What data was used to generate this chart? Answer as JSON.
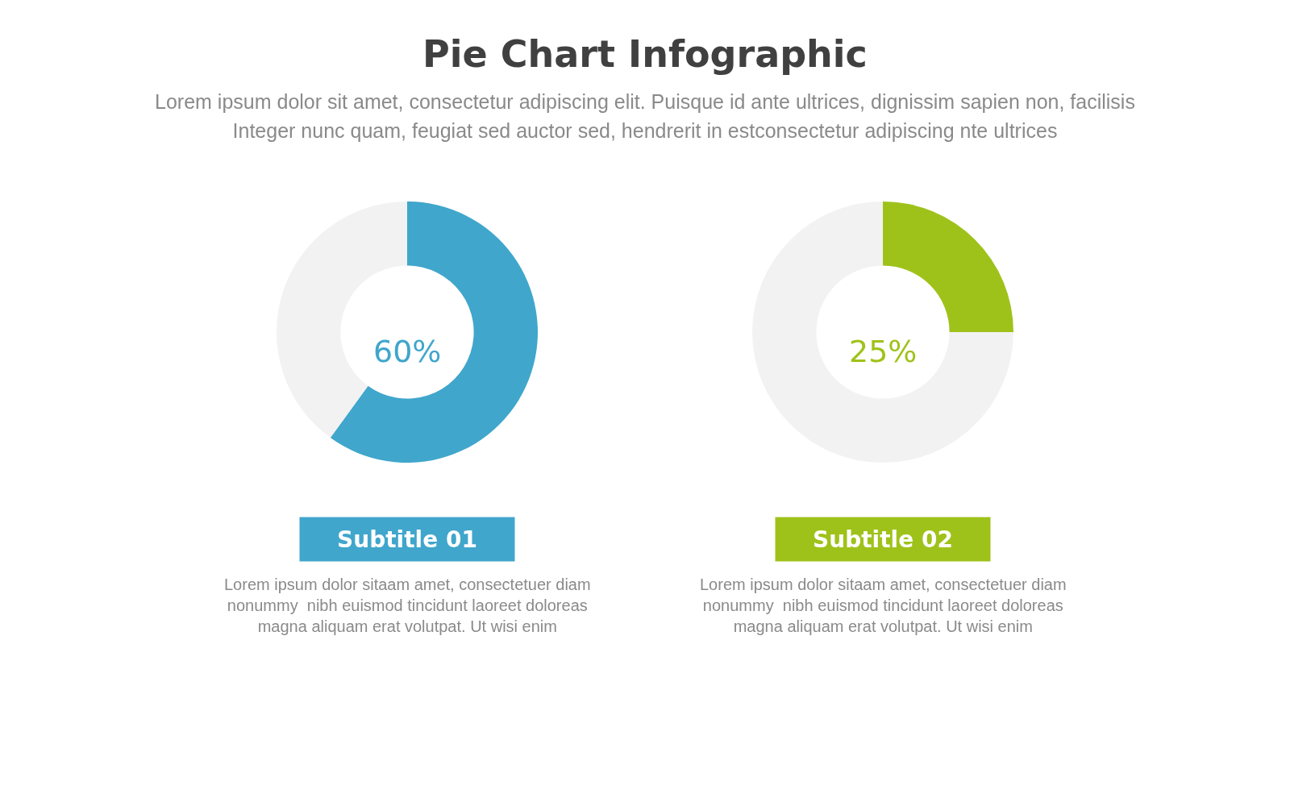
{
  "chart_data": [
    {
      "type": "other",
      "title": "Pie Chart Infographic",
      "subtitle": "Lorem ipsum dolor sit amet, consectetur adipiscing elit. Puisque id ante ultrices, dignissim sapien non, facilisis\nInteger nunc quam, feugiat sed auctor sed, hendrerit in estconsectetur adipiscing nte ultrices"
    },
    {
      "type": "donut",
      "title": "Subtitle 01",
      "categories": [
        null,
        null
      ],
      "values": [
        60,
        40
      ],
      "colors": [
        "#40a6cc",
        "#f2f2f2"
      ],
      "legend": false,
      "annotations": [
        "60%",
        "Lorem ipsum dolor sitaam amet, consectetuer diam\nnonummy  nibh euismod tincidunt laoreet doloreas\nmagna aliquam erat volutpat. Ut wisi enim"
      ]
    },
    {
      "type": "donut",
      "title": "Subtitle 02",
      "categories": [
        null,
        null
      ],
      "values": [
        25,
        75
      ],
      "colors": [
        "#9fc21a",
        "#f2f2f2"
      ],
      "legend": false,
      "annotations": [
        "25%",
        "Lorem ipsum dolor sitaam amet, consectetuer diam\nnonummy  nibh euismod tincidunt laoreet doloreas\nmagna aliquam erat volutpat. Ut wisi enim"
      ]
    }
  ]
}
